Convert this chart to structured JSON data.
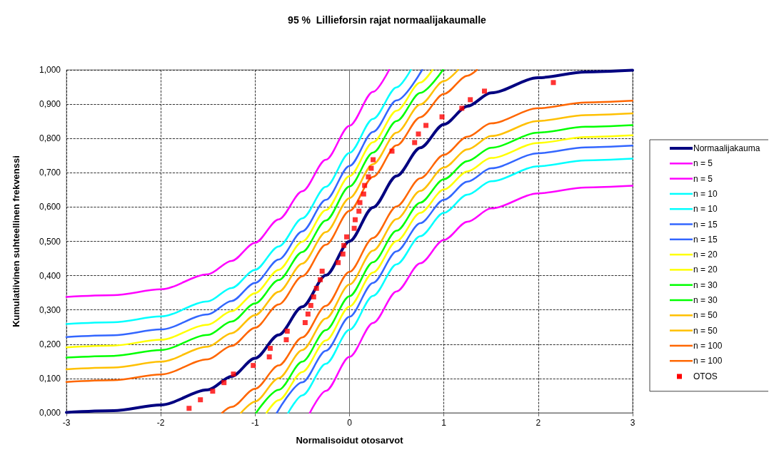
{
  "chart_data": {
    "type": "line",
    "title": "95 %  Lillieforsin rajat normaalijakaumalle",
    "xlabel": "Normalisoidut otosarvot",
    "ylabel": "Kumulatiivinen suhteellinen frekvenssi",
    "xlim": [
      -3,
      3
    ],
    "xticks": [
      -3,
      -2,
      -1,
      0,
      1,
      2,
      3
    ],
    "ylim": [
      0,
      1
    ],
    "yticks": [
      {
        "value": 0,
        "label": "0,000"
      },
      {
        "value": 0.1,
        "label": "0,100"
      },
      {
        "value": 0.2,
        "label": "0,200"
      },
      {
        "value": 0.3,
        "label": "0,300"
      },
      {
        "value": 0.4,
        "label": "0,400"
      },
      {
        "value": 0.5,
        "label": "0,500"
      },
      {
        "value": 0.6,
        "label": "0,600"
      },
      {
        "value": 0.7,
        "label": "0,700"
      },
      {
        "value": 0.8,
        "label": "0,800"
      },
      {
        "value": 0.9,
        "label": "0,900"
      },
      {
        "value": 1,
        "label": "1,000"
      }
    ],
    "grid": true,
    "legend": "right",
    "marker": "none",
    "line_style": "solid",
    "series": [
      {
        "name": "Normaalijakauma",
        "color": "#000080",
        "x": [
          -3,
          -2.5,
          -2,
          -1.5,
          -1.25,
          -1,
          -0.75,
          -0.5,
          -0.25,
          0,
          0.25,
          0.5,
          0.75,
          1,
          1.25,
          1.5,
          2,
          2.5,
          3
        ],
        "values": [
          0.001,
          0.006,
          0.023,
          0.067,
          0.106,
          0.159,
          0.227,
          0.309,
          0.401,
          0.5,
          0.599,
          0.691,
          0.773,
          0.841,
          0.894,
          0.933,
          0.977,
          0.994,
          0.999
        ]
      },
      {
        "name": "n = 5",
        "color": "#ff00ff",
        "x": [
          -3,
          -2.5,
          -2,
          -1.5,
          -1.25,
          -1,
          -0.75,
          -0.5,
          -0.25,
          0,
          0.25,
          0.42
        ],
        "values": [
          0.338,
          0.343,
          0.36,
          0.404,
          0.443,
          0.496,
          0.564,
          0.646,
          0.738,
          0.837,
          0.936,
          1
        ]
      },
      {
        "name": "n = 5",
        "color": "#ff00ff",
        "x": [
          -0.42,
          -0.25,
          0,
          0.25,
          0.5,
          0.75,
          1,
          1.25,
          1.5,
          2,
          2.5,
          3
        ],
        "values": [
          0,
          0.064,
          0.163,
          0.262,
          0.354,
          0.436,
          0.504,
          0.557,
          0.596,
          0.64,
          0.657,
          0.662
        ]
      },
      {
        "name": "n = 10",
        "color": "#00ffff",
        "x": [
          -3,
          -2.5,
          -2,
          -1.5,
          -1.25,
          -1,
          -0.75,
          -0.5,
          -0.25,
          0,
          0.25,
          0.5,
          0.65
        ],
        "values": [
          0.259,
          0.264,
          0.281,
          0.325,
          0.364,
          0.417,
          0.485,
          0.567,
          0.659,
          0.758,
          0.857,
          0.949,
          1
        ]
      },
      {
        "name": "n = 10",
        "color": "#00ffff",
        "x": [
          -0.65,
          -0.5,
          -0.25,
          0,
          0.25,
          0.5,
          0.75,
          1,
          1.25,
          1.5,
          2,
          2.5,
          3
        ],
        "values": [
          0,
          0.051,
          0.143,
          0.242,
          0.341,
          0.433,
          0.515,
          0.583,
          0.636,
          0.675,
          0.719,
          0.736,
          0.741
        ]
      },
      {
        "name": "n = 15",
        "color": "#3366ff",
        "x": [
          -3,
          -2.5,
          -2,
          -1.5,
          -1.25,
          -1,
          -0.75,
          -0.5,
          -0.25,
          0,
          0.25,
          0.5,
          0.77
        ],
        "values": [
          0.221,
          0.226,
          0.243,
          0.287,
          0.326,
          0.379,
          0.447,
          0.529,
          0.621,
          0.72,
          0.819,
          0.911,
          1
        ]
      },
      {
        "name": "n = 15",
        "color": "#3366ff",
        "x": [
          -0.77,
          -0.5,
          -0.25,
          0,
          0.25,
          0.5,
          0.75,
          1,
          1.25,
          1.5,
          2,
          2.5,
          3
        ],
        "values": [
          0,
          0.089,
          0.181,
          0.28,
          0.379,
          0.471,
          0.553,
          0.621,
          0.674,
          0.713,
          0.757,
          0.774,
          0.779
        ]
      },
      {
        "name": "n = 20",
        "color": "#ffff00",
        "x": [
          -3,
          -2.5,
          -2,
          -1.5,
          -1.25,
          -1,
          -0.75,
          -0.5,
          -0.25,
          0,
          0.25,
          0.5,
          0.75,
          0.88
        ],
        "values": [
          0.191,
          0.196,
          0.213,
          0.257,
          0.296,
          0.349,
          0.417,
          0.499,
          0.591,
          0.69,
          0.789,
          0.881,
          0.963,
          1
        ]
      },
      {
        "name": "n = 20",
        "color": "#ffff00",
        "x": [
          -0.88,
          -0.75,
          -0.5,
          -0.25,
          0,
          0.25,
          0.5,
          0.75,
          1,
          1.25,
          1.5,
          2,
          2.5,
          3
        ],
        "values": [
          0,
          0.037,
          0.119,
          0.211,
          0.31,
          0.409,
          0.501,
          0.583,
          0.651,
          0.704,
          0.743,
          0.787,
          0.804,
          0.809
        ]
      },
      {
        "name": "n = 30",
        "color": "#00ff00",
        "x": [
          -3,
          -2.5,
          -2,
          -1.5,
          -1.25,
          -1,
          -0.75,
          -0.5,
          -0.25,
          0,
          0.25,
          0.5,
          0.75,
          0.99
        ],
        "values": [
          0.161,
          0.166,
          0.183,
          0.227,
          0.266,
          0.319,
          0.387,
          0.469,
          0.561,
          0.66,
          0.759,
          0.851,
          0.933,
          1
        ]
      },
      {
        "name": "n = 30",
        "color": "#00ff00",
        "x": [
          -0.99,
          -0.75,
          -0.5,
          -0.25,
          0,
          0.25,
          0.5,
          0.75,
          1,
          1.25,
          1.5,
          2,
          2.5,
          3
        ],
        "values": [
          0,
          0.067,
          0.149,
          0.241,
          0.34,
          0.439,
          0.531,
          0.613,
          0.681,
          0.734,
          0.773,
          0.817,
          0.834,
          0.839
        ]
      },
      {
        "name": "n = 50",
        "color": "#ffc000",
        "x": [
          -3,
          -2.5,
          -2,
          -1.5,
          -1.25,
          -1,
          -0.75,
          -0.5,
          -0.25,
          0,
          0.25,
          0.5,
          0.75,
          1,
          1.15
        ],
        "values": [
          0.127,
          0.132,
          0.149,
          0.193,
          0.232,
          0.285,
          0.353,
          0.435,
          0.527,
          0.626,
          0.725,
          0.817,
          0.899,
          0.967,
          1
        ]
      },
      {
        "name": "n = 50",
        "color": "#ffc000",
        "x": [
          -1.15,
          -1,
          -0.75,
          -0.5,
          -0.25,
          0,
          0.25,
          0.5,
          0.75,
          1,
          1.25,
          1.5,
          2,
          2.5,
          3
        ],
        "values": [
          0,
          0.033,
          0.101,
          0.183,
          0.275,
          0.374,
          0.473,
          0.565,
          0.647,
          0.715,
          0.768,
          0.807,
          0.851,
          0.868,
          0.873
        ]
      },
      {
        "name": "n = 100",
        "color": "#ff6600",
        "x": [
          -3,
          -2.5,
          -2,
          -1.5,
          -1.25,
          -1,
          -0.75,
          -0.5,
          -0.25,
          0,
          0.25,
          0.5,
          0.75,
          1,
          1.25,
          1.35
        ],
        "values": [
          0.09,
          0.095,
          0.112,
          0.156,
          0.195,
          0.248,
          0.316,
          0.398,
          0.49,
          0.589,
          0.688,
          0.78,
          0.862,
          0.93,
          0.983,
          1
        ]
      },
      {
        "name": "n = 100",
        "color": "#ff6600",
        "x": [
          -1.35,
          -1.25,
          -1,
          -0.75,
          -0.5,
          -0.25,
          0,
          0.25,
          0.5,
          0.75,
          1,
          1.25,
          1.5,
          2,
          2.5,
          3
        ],
        "values": [
          0,
          0.017,
          0.07,
          0.138,
          0.22,
          0.312,
          0.411,
          0.51,
          0.602,
          0.684,
          0.752,
          0.805,
          0.844,
          0.888,
          0.905,
          0.91
        ]
      },
      {
        "name": "OTOS",
        "type": "scatter",
        "marker": "square",
        "color": "#ff0000",
        "x": [
          -1.7,
          -1.58,
          -1.45,
          -1.33,
          -1.23,
          -1.02,
          -0.85,
          -0.84,
          -0.67,
          -0.66,
          -0.47,
          -0.44,
          -0.41,
          -0.38,
          -0.35,
          -0.31,
          -0.29,
          -0.12,
          -0.07,
          -0.06,
          -0.03,
          0.05,
          0.06,
          0.1,
          0.11,
          0.15,
          0.16,
          0.2,
          0.23,
          0.25,
          0.45,
          0.69,
          0.73,
          0.81,
          0.98,
          1.19,
          1.28,
          1.43,
          2.16
        ],
        "values": [
          0.013,
          0.038,
          0.063,
          0.088,
          0.113,
          0.138,
          0.163,
          0.188,
          0.213,
          0.238,
          0.263,
          0.288,
          0.313,
          0.338,
          0.363,
          0.388,
          0.413,
          0.438,
          0.463,
          0.488,
          0.513,
          0.538,
          0.563,
          0.588,
          0.613,
          0.638,
          0.663,
          0.688,
          0.713,
          0.738,
          0.763,
          0.788,
          0.813,
          0.838,
          0.863,
          0.888,
          0.913,
          0.938,
          0.963
        ]
      }
    ]
  }
}
